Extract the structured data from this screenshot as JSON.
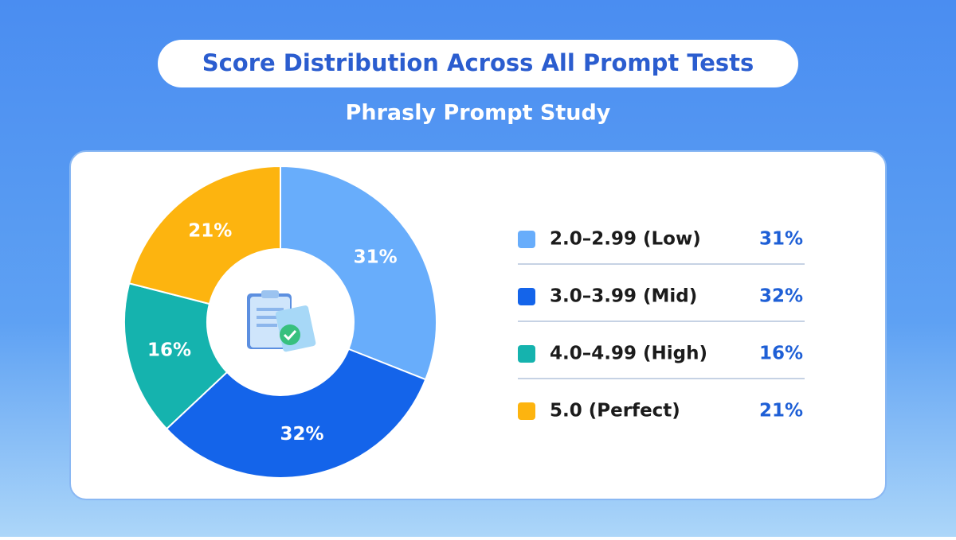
{
  "chart_data": {
    "type": "pie",
    "title": "Score Distribution Across All Prompt Tests",
    "subtitle": "Phrasly Prompt Study",
    "categories": [
      "2.0–2.99 (Low)",
      "3.0–3.99 (Mid)",
      "4.0–4.99 (High)",
      "5.0 (Perfect)"
    ],
    "values": [
      31,
      32,
      16,
      21
    ],
    "value_labels": [
      "31%",
      "32%",
      "16%",
      "21%"
    ],
    "colors": [
      "#68adfb",
      "#1464ea",
      "#15b3ae",
      "#fdb40f"
    ],
    "donut": true,
    "legend": "right"
  }
}
